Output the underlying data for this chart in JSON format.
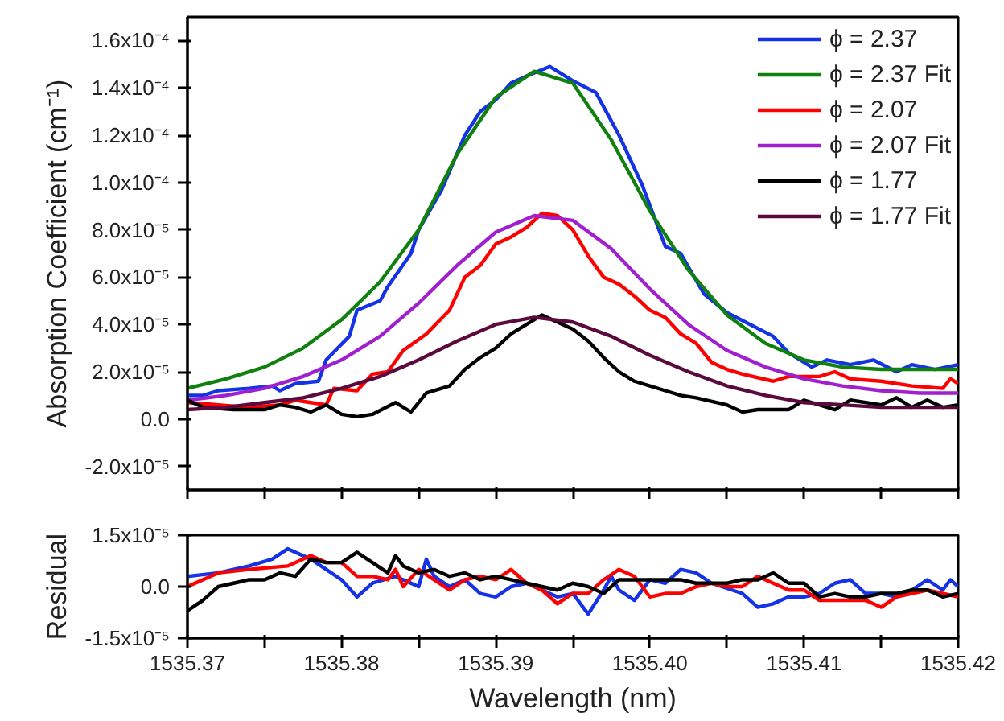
{
  "chart_data": [
    {
      "type": "line",
      "ylabel": "Absorption Coefficient (cm⁻¹)",
      "xlim": [
        1535.37,
        1535.42
      ],
      "ylim": [
        -3e-05,
        0.00017
      ],
      "xticks": [
        1535.37,
        {
          "value": 1535.375,
          "label": null
        },
        1535.38,
        {
          "value": 1535.385,
          "label": null
        },
        1535.39,
        {
          "value": 1535.395,
          "label": null
        },
        1535.4,
        {
          "value": 1535.405,
          "label": null
        },
        1535.41,
        {
          "value": 1535.415,
          "label": null
        },
        1535.42
      ],
      "yticks": [
        {
          "value": -2e-05,
          "label": "-2.0x10⁻⁵"
        },
        {
          "value": 0,
          "label": "0.0"
        },
        {
          "value": 2e-05,
          "label": "2.0x10⁻⁵"
        },
        {
          "value": 4e-05,
          "label": "4.0x10⁻⁵"
        },
        {
          "value": 6e-05,
          "label": "6.0x10⁻⁵"
        },
        {
          "value": 8e-05,
          "label": "8.0x10⁻⁵"
        },
        {
          "value": 0.0001,
          "label": "1.0x10⁻⁴"
        },
        {
          "value": 0.00012,
          "label": "1.2x10⁻⁴"
        },
        {
          "value": 0.00014,
          "label": "1.4x10⁻⁴"
        },
        {
          "value": 0.00016,
          "label": "1.6x10⁻⁴"
        }
      ],
      "tick_labels": "y",
      "legend": "top right",
      "grid": false,
      "line_style": "solid",
      "series": [
        {
          "name": "ϕ = 2.37",
          "color": "#1432e6",
          "x": [
            1535.37,
            1535.371,
            1535.372,
            1535.374,
            1535.3755,
            1535.376,
            1535.377,
            1535.3785,
            1535.379,
            1535.3805,
            1535.381,
            1535.3825,
            1535.383,
            1535.3845,
            1535.385,
            1535.3865,
            1535.388,
            1535.389,
            1535.39,
            1535.391,
            1535.392,
            1535.3935,
            1535.395,
            1535.3965,
            1535.398,
            1535.3995,
            1535.401,
            1535.402,
            1535.4035,
            1535.405,
            1535.4065,
            1535.408,
            1535.409,
            1535.4105,
            1535.4115,
            1535.413,
            1535.4145,
            1535.416,
            1535.417,
            1535.4185,
            1535.42
          ],
          "values": [
            1e-05,
            1e-05,
            1.2e-05,
            1.3e-05,
            1.4e-05,
            1.2e-05,
            1.5e-05,
            1.6e-05,
            2.5e-05,
            3.5e-05,
            4.6e-05,
            5e-05,
            5.6e-05,
            7e-05,
            8e-05,
            9.7e-05,
            0.00012,
            0.00013,
            0.000135,
            0.000142,
            0.000145,
            0.000149,
            0.000143,
            0.000138,
            0.00012,
            9.9e-05,
            7.3e-05,
            7e-05,
            5.3e-05,
            4.5e-05,
            4e-05,
            3.5e-05,
            2.8e-05,
            2.2e-05,
            2.5e-05,
            2.3e-05,
            2.5e-05,
            2e-05,
            2.3e-05,
            2.1e-05,
            2.3e-05
          ]
        },
        {
          "name": "ϕ = 2.37 Fit",
          "color": "#10800f",
          "x": [
            1535.37,
            1535.3725,
            1535.375,
            1535.3775,
            1535.38,
            1535.3825,
            1535.385,
            1535.3875,
            1535.39,
            1535.3925,
            1535.395,
            1535.3975,
            1535.4,
            1535.4025,
            1535.405,
            1535.4075,
            1535.41,
            1535.4125,
            1535.415,
            1535.4175,
            1535.42
          ],
          "values": [
            1.3e-05,
            1.7e-05,
            2.2e-05,
            3e-05,
            4.2e-05,
            5.8e-05,
            8e-05,
            0.000112,
            0.000136,
            0.000147,
            0.000142,
            0.000118,
            8.8e-05,
            6.3e-05,
            4.4e-05,
            3.2e-05,
            2.5e-05,
            2.2e-05,
            2.1e-05,
            2.1e-05,
            2.1e-05
          ]
        },
        {
          "name": "ϕ = 2.07",
          "color": "#ff0000",
          "x": [
            1535.37,
            1535.372,
            1535.374,
            1535.376,
            1535.377,
            1535.378,
            1535.379,
            1535.3795,
            1535.381,
            1535.382,
            1535.383,
            1535.384,
            1535.3855,
            1535.387,
            1535.388,
            1535.389,
            1535.39,
            1535.391,
            1535.392,
            1535.393,
            1535.394,
            1535.395,
            1535.396,
            1535.397,
            1535.398,
            1535.399,
            1535.4,
            1535.401,
            1535.402,
            1535.403,
            1535.404,
            1535.405,
            1535.406,
            1535.408,
            1535.409,
            1535.411,
            1535.412,
            1535.413,
            1535.415,
            1535.417,
            1535.419,
            1535.4195,
            1535.42
          ],
          "values": [
            7e-06,
            6e-06,
            5e-06,
            6e-06,
            8e-06,
            7e-06,
            6e-06,
            1.3e-05,
            1.2e-05,
            1.9e-05,
            2e-05,
            2.9e-05,
            3.6e-05,
            4.6e-05,
            6e-05,
            6.5e-05,
            7.4e-05,
            7.7e-05,
            8.1e-05,
            8.7e-05,
            8.6e-05,
            8e-05,
            6.9e-05,
            6e-05,
            5.7e-05,
            5.2e-05,
            4.6e-05,
            4.3e-05,
            3.6e-05,
            3.2e-05,
            2.4e-05,
            2.1e-05,
            1.9e-05,
            1.6e-05,
            1.8e-05,
            1.8e-05,
            2e-05,
            1.7e-05,
            1.6e-05,
            1.4e-05,
            1.3e-05,
            1.7e-05,
            1.5e-05
          ]
        },
        {
          "name": "ϕ = 2.07 Fit",
          "color": "#a020d0",
          "x": [
            1535.37,
            1535.3725,
            1535.375,
            1535.3775,
            1535.38,
            1535.3825,
            1535.385,
            1535.3875,
            1535.39,
            1535.3925,
            1535.395,
            1535.3975,
            1535.4,
            1535.4025,
            1535.405,
            1535.4075,
            1535.41,
            1535.4125,
            1535.415,
            1535.4175,
            1535.42
          ],
          "values": [
            8e-06,
            1e-05,
            1.3e-05,
            1.8e-05,
            2.5e-05,
            3.5e-05,
            4.9e-05,
            6.5e-05,
            7.9e-05,
            8.6e-05,
            8.4e-05,
            7.2e-05,
            5.5e-05,
            4e-05,
            2.9e-05,
            2.2e-05,
            1.7e-05,
            1.4e-05,
            1.2e-05,
            1.1e-05,
            1.1e-05
          ]
        },
        {
          "name": "ϕ = 1.77",
          "color": "#000000",
          "x": [
            1535.37,
            1535.371,
            1535.373,
            1535.375,
            1535.376,
            1535.377,
            1535.378,
            1535.379,
            1535.38,
            1535.381,
            1535.382,
            1535.3835,
            1535.3845,
            1535.3855,
            1535.387,
            1535.388,
            1535.389,
            1535.39,
            1535.391,
            1535.392,
            1535.393,
            1535.394,
            1535.395,
            1535.396,
            1535.397,
            1535.398,
            1535.399,
            1535.4,
            1535.401,
            1535.402,
            1535.403,
            1535.405,
            1535.406,
            1535.407,
            1535.409,
            1535.41,
            1535.411,
            1535.412,
            1535.413,
            1535.415,
            1535.416,
            1535.417,
            1535.418,
            1535.419,
            1535.42
          ],
          "values": [
            8e-06,
            5e-06,
            4e-06,
            4e-06,
            6e-06,
            5e-06,
            3e-06,
            6e-06,
            2e-06,
            1e-06,
            2e-06,
            7e-06,
            3e-06,
            1.1e-05,
            1.4e-05,
            2.1e-05,
            2.6e-05,
            3e-05,
            3.6e-05,
            4e-05,
            4.4e-05,
            4.1e-05,
            3.8e-05,
            3.3e-05,
            2.6e-05,
            2e-05,
            1.6e-05,
            1.4e-05,
            1.2e-05,
            1e-05,
            9e-06,
            6e-06,
            3e-06,
            4e-06,
            4e-06,
            8e-06,
            6e-06,
            4e-06,
            8e-06,
            6e-06,
            9e-06,
            5e-06,
            8e-06,
            5e-06,
            6e-06
          ]
        },
        {
          "name": "ϕ = 1.77 Fit",
          "color": "#5a0a3c",
          "x": [
            1535.37,
            1535.3725,
            1535.375,
            1535.3775,
            1535.38,
            1535.3825,
            1535.385,
            1535.3875,
            1535.39,
            1535.3925,
            1535.395,
            1535.3975,
            1535.4,
            1535.4025,
            1535.405,
            1535.4075,
            1535.41,
            1535.4125,
            1535.415,
            1535.4175,
            1535.42
          ],
          "values": [
            4e-06,
            5e-06,
            7e-06,
            9e-06,
            1.3e-05,
            1.8e-05,
            2.5e-05,
            3.3e-05,
            4e-05,
            4.3e-05,
            4.1e-05,
            3.5e-05,
            2.7e-05,
            2e-05,
            1.4e-05,
            1e-05,
            7e-06,
            6e-06,
            5e-06,
            5e-06,
            5e-06
          ]
        }
      ]
    },
    {
      "type": "line",
      "xlabel": "Wavelength (nm)",
      "ylabel": "Residual",
      "xlim": [
        1535.37,
        1535.42
      ],
      "ylim": [
        -1.5e-05,
        1.5e-05
      ],
      "xticks": [
        1535.37,
        {
          "value": 1535.375,
          "label": null
        },
        {
          "value": 1535.38,
          "label": "1535.38"
        },
        {
          "value": 1535.385,
          "label": null
        },
        {
          "value": 1535.39,
          "label": "1535.39"
        },
        {
          "value": 1535.395,
          "label": null
        },
        {
          "value": 1535.4,
          "label": "1535.40"
        },
        {
          "value": 1535.405,
          "label": null
        },
        {
          "value": 1535.41,
          "label": "1535.41"
        },
        {
          "value": 1535.415,
          "label": null
        },
        1535.42
      ],
      "yticks": [
        {
          "value": -1.5e-05,
          "label": "-1.5x10⁻⁵"
        },
        {
          "value": 0,
          "label": "0.0"
        },
        {
          "value": 1.5e-05,
          "label": "1.5x10⁻⁵"
        }
      ],
      "grid": false,
      "line_style": "solid",
      "series": [
        {
          "color": "#1432e6",
          "x": [
            1535.37,
            1535.372,
            1535.374,
            1535.3755,
            1535.3765,
            1535.378,
            1535.379,
            1535.38,
            1535.381,
            1535.382,
            1535.3835,
            1535.384,
            1535.385,
            1535.3855,
            1535.386,
            1535.387,
            1535.388,
            1535.389,
            1535.39,
            1535.391,
            1535.392,
            1535.393,
            1535.394,
            1535.395,
            1535.396,
            1535.397,
            1535.3975,
            1535.398,
            1535.399,
            1535.4,
            1535.401,
            1535.402,
            1535.403,
            1535.404,
            1535.406,
            1535.407,
            1535.408,
            1535.409,
            1535.41,
            1535.411,
            1535.412,
            1535.413,
            1535.414,
            1535.415,
            1535.416,
            1535.417,
            1535.418,
            1535.419,
            1535.4195,
            1535.42
          ],
          "values": [
            3e-06,
            4e-06,
            6e-06,
            8e-06,
            1.1e-05,
            8e-06,
            5e-06,
            2e-06,
            -3e-06,
            1e-06,
            3e-06,
            2e-06,
            0,
            8e-06,
            3e-06,
            0,
            2e-06,
            -2e-06,
            -3e-06,
            0,
            1e-06,
            -1e-06,
            -3e-06,
            -2e-06,
            -8e-06,
            -1e-06,
            3e-06,
            -1e-06,
            -4e-06,
            2e-06,
            1e-06,
            5e-06,
            4e-06,
            1e-06,
            -2e-06,
            -6e-06,
            -5e-06,
            -3e-06,
            -3e-06,
            -2e-06,
            1e-06,
            2e-06,
            -2e-06,
            -2e-06,
            -3e-06,
            -1e-06,
            2e-06,
            -1e-06,
            2e-06,
            0
          ]
        },
        {
          "color": "#ff0000",
          "x": [
            1535.37,
            1535.372,
            1535.374,
            1535.3765,
            1535.378,
            1535.379,
            1535.38,
            1535.381,
            1535.382,
            1535.383,
            1535.3835,
            1535.384,
            1535.385,
            1535.386,
            1535.387,
            1535.388,
            1535.389,
            1535.39,
            1535.391,
            1535.392,
            1535.393,
            1535.394,
            1535.395,
            1535.396,
            1535.397,
            1535.398,
            1535.399,
            1535.4,
            1535.401,
            1535.402,
            1535.403,
            1535.404,
            1535.405,
            1535.406,
            1535.407,
            1535.408,
            1535.409,
            1535.41,
            1535.411,
            1535.412,
            1535.413,
            1535.414,
            1535.415,
            1535.416,
            1535.418,
            1535.42
          ],
          "values": [
            0,
            4e-06,
            5e-06,
            6e-06,
            9e-06,
            7e-06,
            7e-06,
            3e-06,
            3e-06,
            2e-06,
            5e-06,
            0,
            5e-06,
            2e-06,
            -1e-06,
            2e-06,
            3e-06,
            2e-06,
            5e-06,
            1e-06,
            -1e-06,
            -5e-06,
            -2e-06,
            -2e-06,
            2e-06,
            5e-06,
            3e-06,
            -3e-06,
            -2e-06,
            -2e-06,
            0,
            1e-06,
            0,
            0,
            3e-06,
            1e-06,
            -1e-06,
            -1e-06,
            -4e-06,
            -4e-06,
            -4e-06,
            -4e-06,
            -6e-06,
            -3e-06,
            -1e-06,
            -3e-06
          ]
        },
        {
          "color": "#000000",
          "x": [
            1535.37,
            1535.371,
            1535.372,
            1535.373,
            1535.374,
            1535.375,
            1535.376,
            1535.377,
            1535.378,
            1535.379,
            1535.38,
            1535.381,
            1535.382,
            1535.383,
            1535.3835,
            1535.384,
            1535.385,
            1535.386,
            1535.387,
            1535.388,
            1535.389,
            1535.39,
            1535.391,
            1535.392,
            1535.393,
            1535.394,
            1535.395,
            1535.396,
            1535.397,
            1535.398,
            1535.399,
            1535.4,
            1535.401,
            1535.402,
            1535.403,
            1535.404,
            1535.405,
            1535.406,
            1535.407,
            1535.408,
            1535.409,
            1535.41,
            1535.411,
            1535.412,
            1535.413,
            1535.414,
            1535.415,
            1535.416,
            1535.417,
            1535.418,
            1535.419,
            1535.42
          ],
          "values": [
            -7e-06,
            -4e-06,
            0,
            1e-06,
            2e-06,
            2e-06,
            4e-06,
            3e-06,
            8e-06,
            7e-06,
            7e-06,
            1e-05,
            7e-06,
            4e-06,
            9e-06,
            6e-06,
            4e-06,
            5e-06,
            3e-06,
            4e-06,
            2e-06,
            3e-06,
            2e-06,
            1e-06,
            0,
            -1e-06,
            1e-06,
            0,
            -2e-06,
            2e-06,
            2e-06,
            2e-06,
            2e-06,
            2e-06,
            1e-06,
            1e-06,
            1e-06,
            2e-06,
            2e-06,
            4e-06,
            1e-06,
            1e-06,
            -3e-06,
            -2e-06,
            -3e-06,
            -3e-06,
            -2e-06,
            -2e-06,
            -1e-06,
            -1e-06,
            -3e-06,
            -2e-06
          ]
        }
      ]
    }
  ]
}
